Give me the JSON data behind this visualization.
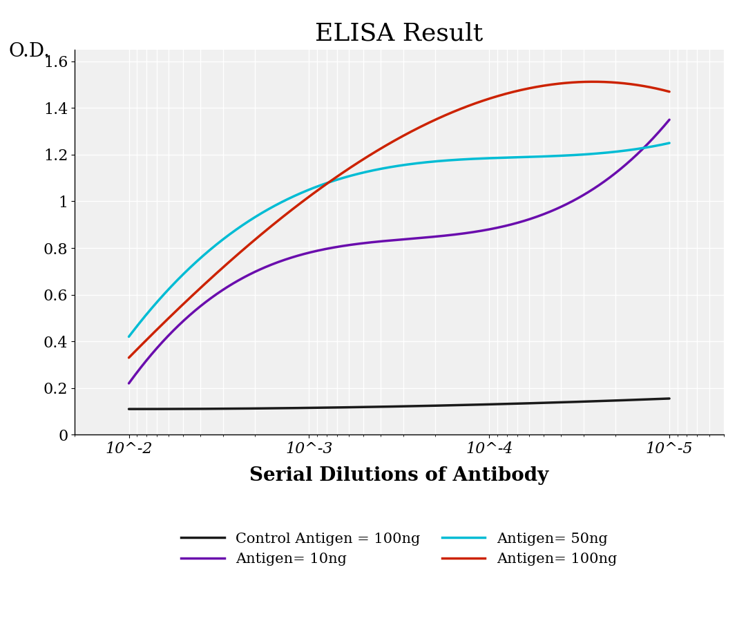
{
  "title": "ELISA Result",
  "ylabel": "O.D.",
  "xlabel": "Serial Dilutions of Antibody",
  "background_color": "#ffffff",
  "plot_background_color": "#f0f0f0",
  "title_fontsize": 26,
  "axis_label_fontsize": 20,
  "tick_fontsize": 16,
  "ylim": [
    0,
    1.65
  ],
  "yticks": [
    0,
    0.2,
    0.4,
    0.6,
    0.8,
    1.0,
    1.2,
    1.4,
    1.6
  ],
  "x_positions": [
    0.01,
    0.001,
    0.0001,
    1e-05
  ],
  "x_tick_labels": [
    "10^-2",
    "10^-3",
    "10^-4",
    "10^-5"
  ],
  "series": [
    {
      "label": "Control Antigen = 100ng",
      "color": "#1a1a1a",
      "linewidth": 2.5,
      "values": [
        0.155,
        0.13,
        0.115,
        0.11
      ]
    },
    {
      "label": "Antigen= 10ng",
      "color": "#6a0dad",
      "linewidth": 2.5,
      "values": [
        1.35,
        0.88,
        0.78,
        0.22
      ]
    },
    {
      "label": "Antigen= 50ng",
      "color": "#00bcd4",
      "linewidth": 2.5,
      "values": [
        1.25,
        1.185,
        1.05,
        0.42
      ]
    },
    {
      "label": "Antigen= 100ng",
      "color": "#cc2200",
      "linewidth": 2.5,
      "values": [
        1.47,
        1.44,
        1.02,
        0.33
      ]
    }
  ],
  "legend_items": [
    {
      "label": "Control Antigen = 100ng",
      "color": "#1a1a1a"
    },
    {
      "label": "Antigen= 10ng",
      "color": "#6a0dad"
    },
    {
      "label": "Antigen= 50ng",
      "color": "#00bcd4"
    },
    {
      "label": "Antigen= 100ng",
      "color": "#cc2200"
    }
  ]
}
